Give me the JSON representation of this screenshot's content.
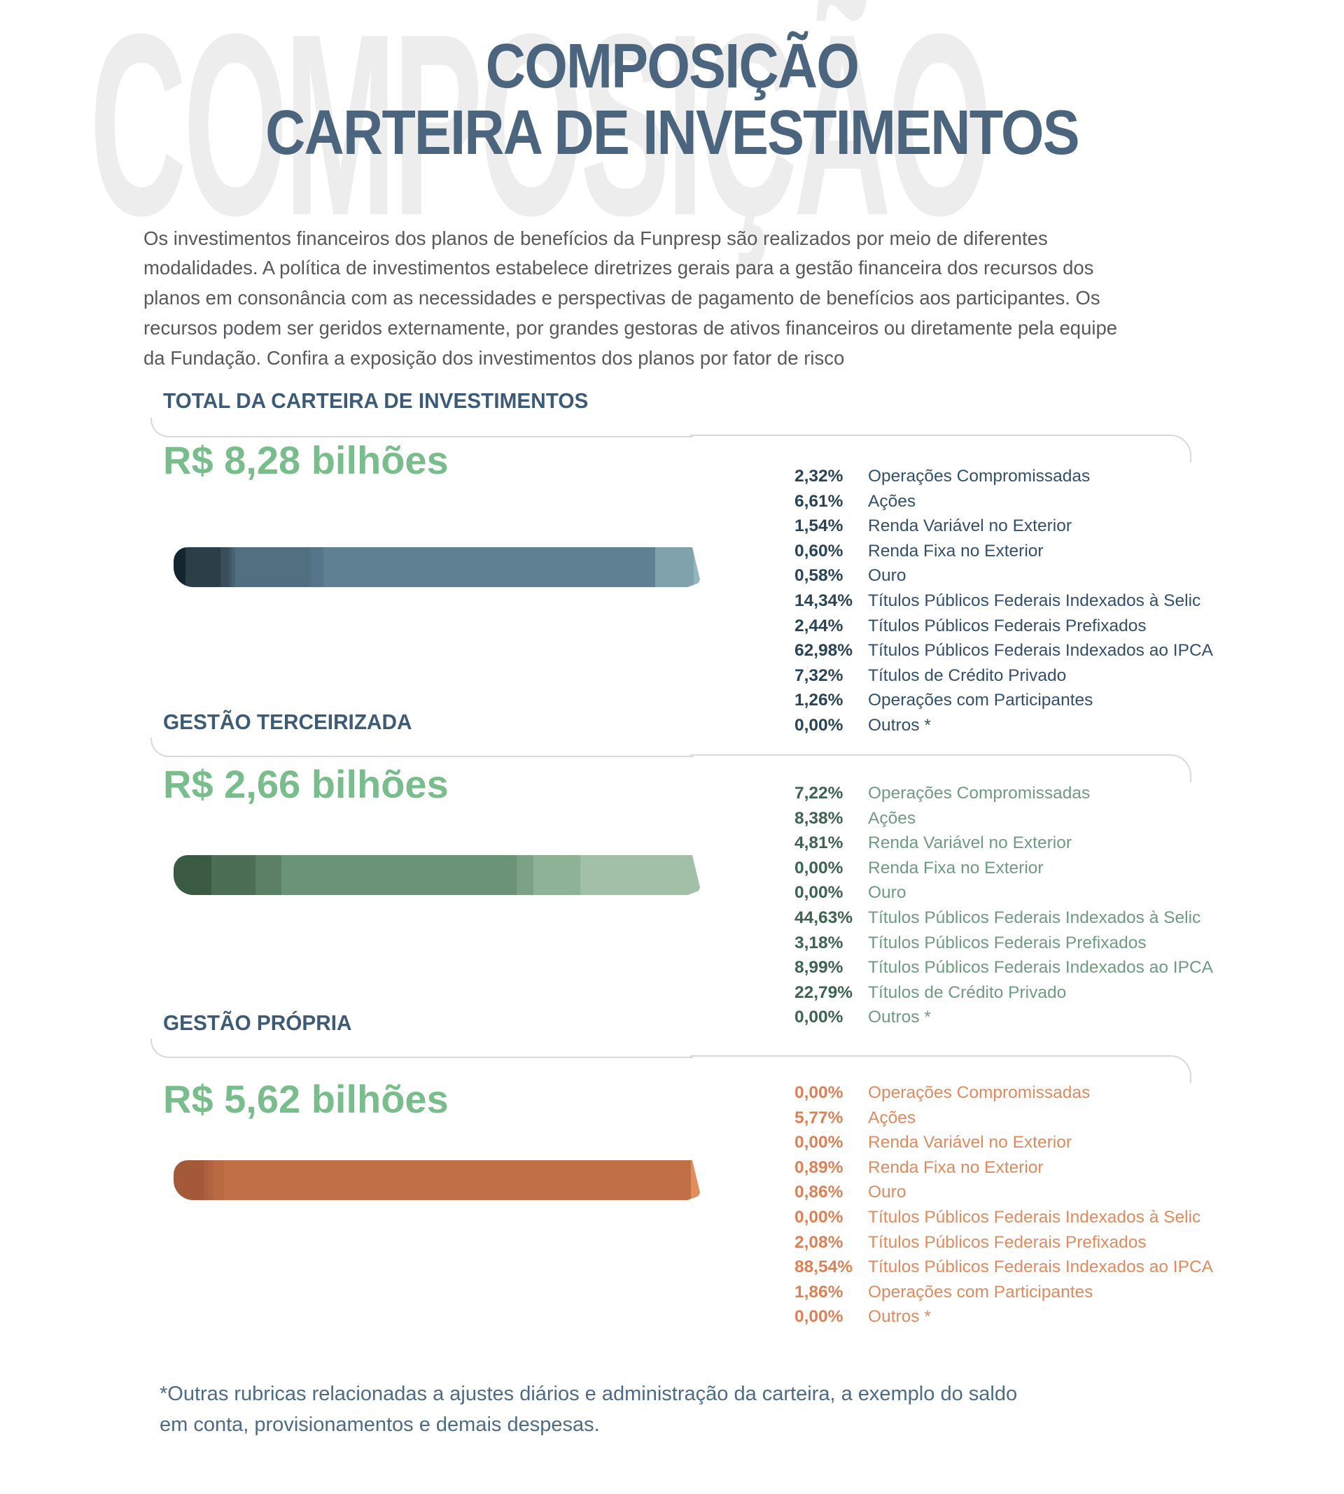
{
  "header": {
    "watermark": "COMPOSIÇÃO",
    "title_line1": "COMPOSIÇÃO",
    "title_line2": "CARTEIRA DE INVESTIMENTOS",
    "title_color": "#4a657d",
    "watermark_color": "#ededed"
  },
  "intro": {
    "text": "Os investimentos financeiros dos planos de benefícios da Funpresp são realizados por meio de diferentes modalidades. A política de investimentos estabelece diretrizes gerais para a gestão financeira dos recursos dos planos em consonância com as necessidades e perspectivas de pagamento de benefícios aos participantes. Os recursos podem ser geridos externamente, por grandes gestoras de ativos financeiros ou diretamente pela equipe da Fundação. Confira a exposição dos investimentos dos planos por fator de risco"
  },
  "sections": [
    {
      "heading": "TOTAL DA CARTEIRA DE INVESTIMENTOS",
      "value": "R$ 8,28 bilhões",
      "value_color": "#7abd8d",
      "pct_color": "#2a4457",
      "label_color": "#33506b",
      "items": [
        {
          "pct": "2,32%",
          "label": "Operações Compromissadas"
        },
        {
          "pct": "6,61%",
          "label": "Ações"
        },
        {
          "pct": "1,54%",
          "label": "Renda Variável no Exterior"
        },
        {
          "pct": "0,60%",
          "label": "Renda Fixa no Exterior"
        },
        {
          "pct": "0,58%",
          "label": "Ouro"
        },
        {
          "pct": "14,34%",
          "label": "Títulos Públicos Federais Indexados à Selic"
        },
        {
          "pct": "2,44%",
          "label": "Títulos Públicos Federais Prefixados"
        },
        {
          "pct": "62,98%",
          "label": "Títulos Públicos Federais Indexados ao IPCA"
        },
        {
          "pct": "7,32%",
          "label": "Títulos de Crédito Privado"
        },
        {
          "pct": "1,26%",
          "label": "Operações com Participantes"
        },
        {
          "pct": "0,00%",
          "label": "Outros *"
        }
      ],
      "bar": {
        "segments": [
          {
            "label": "Operações Compromissadas",
            "value": 2.32,
            "color": "#13252f"
          },
          {
            "label": "Ações",
            "value": 6.61,
            "color": "#2c3e48"
          },
          {
            "label": "Renda Variável no Exterior",
            "value": 1.54,
            "color": "#394d5b"
          },
          {
            "label": "Renda Fixa no Exterior",
            "value": 0.6,
            "color": "#42576a"
          },
          {
            "label": "Ouro",
            "value": 0.58,
            "color": "#4a6170"
          },
          {
            "label": "Títulos Públicos Federais Indexados à Selic",
            "value": 14.34,
            "color": "#50707f"
          },
          {
            "label": "Títulos Públicos Federais Prefixados",
            "value": 2.44,
            "color": "#55758a"
          },
          {
            "label": "Títulos Públicos Federais Indexados ao IPCA",
            "value": 62.98,
            "color": "#5f8093"
          },
          {
            "label": "Títulos de Crédito Privado",
            "value": 7.32,
            "color": "#80a2ad"
          },
          {
            "label": "Operações com Participantes",
            "value": 1.26,
            "color": "#94b6be"
          },
          {
            "label": "Outros *",
            "value": 0,
            "color": "#bcd4da"
          }
        ]
      }
    },
    {
      "heading": "GESTÃO TERCEIRIZADA",
      "value": "R$ 2,66 bilhões",
      "value_color": "#7abd8d",
      "pct_color": "#3c6450",
      "label_color": "#6f9b81",
      "items": [
        {
          "pct": "7,22%",
          "label": "Operações Compromissadas"
        },
        {
          "pct": "8,38%",
          "label": "Ações"
        },
        {
          "pct": "4,81%",
          "label": "Renda Variável no Exterior"
        },
        {
          "pct": "0,00%",
          "label": "Renda Fixa no Exterior"
        },
        {
          "pct": "0,00%",
          "label": "Ouro"
        },
        {
          "pct": "44,63%",
          "label": "Títulos Públicos Federais Indexados à Selic"
        },
        {
          "pct": "3,18%",
          "label": "Títulos Públicos Federais Prefixados"
        },
        {
          "pct": "8,99%",
          "label": "Títulos Públicos Federais Indexados ao IPCA"
        },
        {
          "pct": "22,79%",
          "label": "Títulos de Crédito Privado"
        },
        {
          "pct": "0,00%",
          "label": "Outros *"
        }
      ],
      "bar": {
        "segments": [
          {
            "label": "Operações Compromissadas",
            "value": 7.22,
            "color": "#3a5a44"
          },
          {
            "label": "Ações",
            "value": 8.38,
            "color": "#4b6e54"
          },
          {
            "label": "Renda Variável no Exterior",
            "value": 4.81,
            "color": "#5c8064"
          },
          {
            "label": "Renda Fixa no Exterior",
            "value": 0,
            "color": "#6b9377"
          },
          {
            "label": "Ouro",
            "value": 0,
            "color": "#6b9377"
          },
          {
            "label": "Títulos Públicos Federais Indexados à Selic",
            "value": 44.63,
            "color": "#6b9377"
          },
          {
            "label": "Títulos Públicos Federais Prefixados",
            "value": 3.18,
            "color": "#7ca285"
          },
          {
            "label": "Títulos Públicos Federais Indexados ao IPCA",
            "value": 8.99,
            "color": "#8db295"
          },
          {
            "label": "Títulos de Crédito Privado",
            "value": 22.79,
            "color": "#a2c0a8"
          },
          {
            "label": "Outros *",
            "value": 0,
            "color": "#b5d0ba"
          }
        ]
      }
    },
    {
      "heading": "GESTÃO PRÓPRIA",
      "value": "R$ 5,62 bilhões",
      "value_color": "#7abd8d",
      "pct_color": "#dc8155",
      "label_color": "#e08a5e",
      "items": [
        {
          "pct": "0,00%",
          "label": "Operações Compromissadas"
        },
        {
          "pct": "5,77%",
          "label": "Ações"
        },
        {
          "pct": "0,00%",
          "label": "Renda Variável no Exterior"
        },
        {
          "pct": "0,89%",
          "label": "Renda Fixa no Exterior"
        },
        {
          "pct": "0,86%",
          "label": "Ouro"
        },
        {
          "pct": "0,00%",
          "label": "Títulos Públicos Federais Indexados à Selic"
        },
        {
          "pct": "2,08%",
          "label": "Títulos Públicos Federais Prefixados"
        },
        {
          "pct": "88,54%",
          "label": "Títulos Públicos Federais Indexados ao IPCA"
        },
        {
          "pct": "1,86%",
          "label": "Operações com Participantes"
        },
        {
          "pct": "0,00%",
          "label": "Outros *"
        }
      ],
      "bar": {
        "segments": [
          {
            "label": "Operações Compromissadas",
            "value": 0,
            "color": "#a45a39"
          },
          {
            "label": "Ações",
            "value": 5.77,
            "color": "#a45a39"
          },
          {
            "label": "Renda Variável no Exterior",
            "value": 0,
            "color": "#ad603d"
          },
          {
            "label": "Renda Fixa no Exterior",
            "value": 0.89,
            "color": "#ad603d"
          },
          {
            "label": "Ouro",
            "value": 0.86,
            "color": "#b26540"
          },
          {
            "label": "Títulos Públicos Federais Indexados à Selic",
            "value": 0,
            "color": "#b96a43"
          },
          {
            "label": "Títulos Públicos Federais Prefixados",
            "value": 2.08,
            "color": "#b96a43"
          },
          {
            "label": "Títulos Públicos Federais Indexados ao IPCA",
            "value": 88.54,
            "color": "#c06f46"
          },
          {
            "label": "Operações com Participantes",
            "value": 1.86,
            "color": "#e18e5c"
          },
          {
            "label": "Outros *",
            "value": 0,
            "color": "#eab38f"
          }
        ]
      }
    }
  ],
  "footnote": {
    "text": "*Outras rubricas relacionadas a ajustes diários e administração da carteira, a exemplo do saldo em conta, provisionamentos e demais despesas.",
    "color": "#4d6b84"
  },
  "divider_color": "#d9d9d9",
  "chart_data": [
    {
      "type": "bar",
      "orientation": "horizontal",
      "stacked": true,
      "title": "TOTAL DA CARTEIRA DE INVESTIMENTOS",
      "total_label": "R$ 8,28 bilhões",
      "unit": "%",
      "categories": [
        "Operações Compromissadas",
        "Ações",
        "Renda Variável no Exterior",
        "Renda Fixa no Exterior",
        "Ouro",
        "Títulos Públicos Federais Indexados à Selic",
        "Títulos Públicos Federais Prefixados",
        "Títulos Públicos Federais Indexados ao IPCA",
        "Títulos de Crédito Privado",
        "Operações com Participantes",
        "Outros *"
      ],
      "values": [
        2.32,
        6.61,
        1.54,
        0.6,
        0.58,
        14.34,
        2.44,
        62.98,
        7.32,
        1.26,
        0.0
      ],
      "palette": "blue-gray dark to light"
    },
    {
      "type": "bar",
      "orientation": "horizontal",
      "stacked": true,
      "title": "GESTÃO TERCEIRIZADA",
      "total_label": "R$ 2,66 bilhões",
      "unit": "%",
      "categories": [
        "Operações Compromissadas",
        "Ações",
        "Renda Variável no Exterior",
        "Renda Fixa no Exterior",
        "Ouro",
        "Títulos Públicos Federais Indexados à Selic",
        "Títulos Públicos Federais Prefixados",
        "Títulos Públicos Federais Indexados ao IPCA",
        "Títulos de Crédito Privado",
        "Outros *"
      ],
      "values": [
        7.22,
        8.38,
        4.81,
        0.0,
        0.0,
        44.63,
        3.18,
        8.99,
        22.79,
        0.0
      ],
      "palette": "green dark to light"
    },
    {
      "type": "bar",
      "orientation": "horizontal",
      "stacked": true,
      "title": "GESTÃO PRÓPRIA",
      "total_label": "R$ 5,62 bilhões",
      "unit": "%",
      "categories": [
        "Operações Compromissadas",
        "Ações",
        "Renda Variável no Exterior",
        "Renda Fixa no Exterior",
        "Ouro",
        "Títulos Públicos Federais Indexados à Selic",
        "Títulos Públicos Federais Prefixados",
        "Títulos Públicos Federais Indexados ao IPCA",
        "Operações com Participantes",
        "Outros *"
      ],
      "values": [
        0.0,
        5.77,
        0.0,
        0.89,
        0.86,
        0.0,
        2.08,
        88.54,
        1.86,
        0.0
      ],
      "palette": "terracotta orange dark to light"
    }
  ]
}
